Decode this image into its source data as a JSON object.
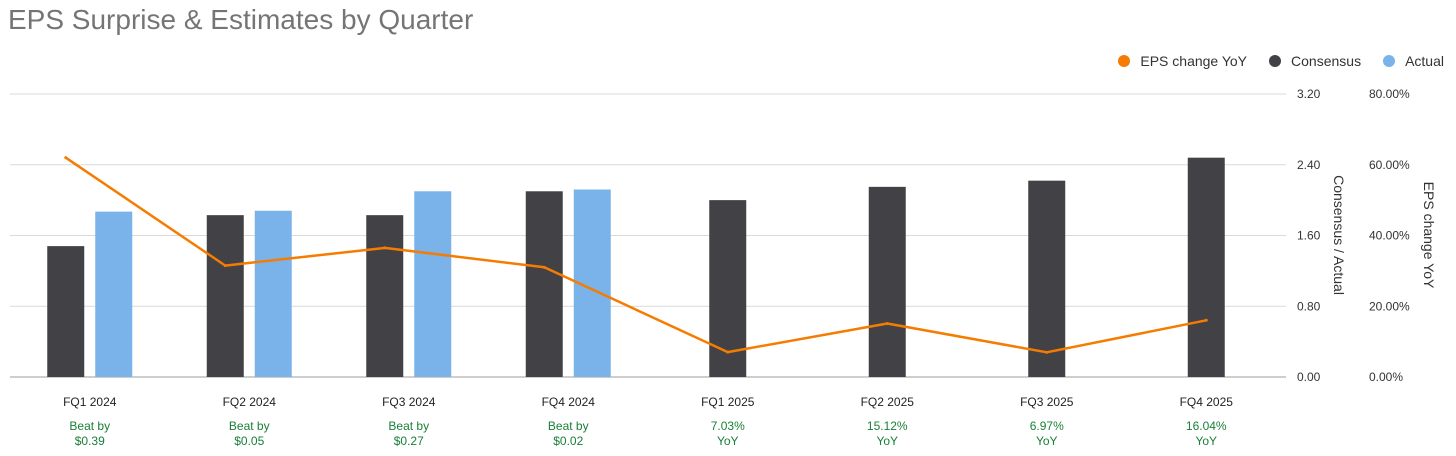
{
  "title": "EPS Surprise & Estimates by Quarter",
  "legend": [
    {
      "label": "EPS change YoY",
      "color": "#f57c00"
    },
    {
      "label": "Consensus",
      "color": "#424246"
    },
    {
      "label": "Actual",
      "color": "#7ab3ea"
    }
  ],
  "chart_data": {
    "type": "bar",
    "categories": [
      "FQ1 2024",
      "FQ2 2024",
      "FQ3 2024",
      "FQ4 2024",
      "FQ1 2025",
      "FQ2 2025",
      "FQ3 2025",
      "FQ4 2025"
    ],
    "series": [
      {
        "name": "Consensus",
        "type": "bar",
        "axis": "left",
        "values": [
          1.48,
          1.83,
          1.83,
          2.1,
          2.0,
          2.15,
          2.22,
          2.48
        ]
      },
      {
        "name": "Actual",
        "type": "bar",
        "axis": "left",
        "values": [
          1.87,
          1.88,
          2.1,
          2.12,
          null,
          null,
          null,
          null
        ]
      },
      {
        "name": "EPS change YoY",
        "type": "line",
        "axis": "right",
        "values": [
          62.0,
          31.5,
          36.5,
          31.0,
          7.03,
          15.12,
          6.97,
          16.04
        ]
      }
    ],
    "annotations": [
      [
        "Beat by",
        "$0.39"
      ],
      [
        "Beat by",
        "$0.05"
      ],
      [
        "Beat by",
        "$0.27"
      ],
      [
        "Beat by",
        "$0.02"
      ],
      [
        "7.03%",
        "YoY"
      ],
      [
        "15.12%",
        "YoY"
      ],
      [
        "6.97%",
        "YoY"
      ],
      [
        "16.04%",
        "YoY"
      ]
    ],
    "left_axis": {
      "label": "Consensus / Actual",
      "ylim": [
        0,
        3.2
      ],
      "ticks": [
        "0.00",
        "0.80",
        "1.60",
        "2.40",
        "3.20"
      ]
    },
    "right_axis": {
      "label": "EPS change YoY",
      "ylim": [
        0,
        80
      ],
      "ticks": [
        "0.00%",
        "20.00%",
        "40.00%",
        "60.00%",
        "80.00%"
      ]
    },
    "grid": true,
    "legend_position": "top-right",
    "colors": {
      "consensus": "#424246",
      "actual": "#7ab3ea",
      "line": "#f57c00",
      "annotation": "#1a7f37",
      "grid": "#d9d9d9"
    }
  }
}
